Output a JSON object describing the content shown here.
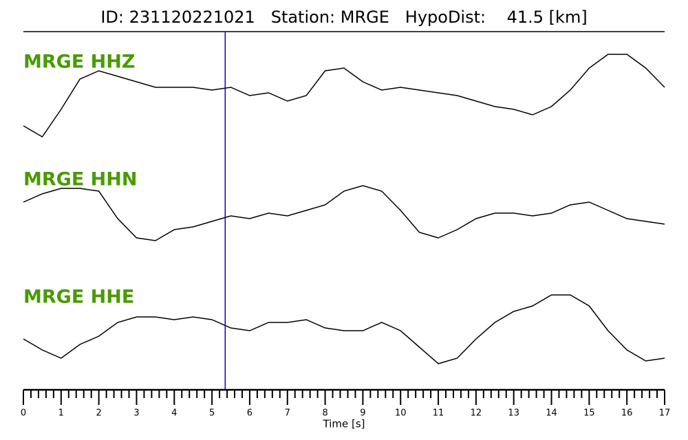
{
  "chart_data": {
    "type": "line",
    "title": "ID: 231120221021   Station: MRGE   HypoDist:    41.5 [km]",
    "xlabel": "Time [s]",
    "x": [
      0,
      0.5,
      1,
      1.5,
      2,
      2.5,
      3,
      3.5,
      4,
      4.5,
      5,
      5.5,
      6,
      6.5,
      7,
      7.5,
      8,
      8.5,
      9,
      9.5,
      10,
      10.5,
      11,
      11.5,
      12,
      12.5,
      13,
      13.5,
      14,
      14.5,
      15,
      15.5,
      16,
      16.5,
      17
    ],
    "series": [
      {
        "name": "MRGE HHZ",
        "color": "#000000",
        "label_color": "#4a9a00",
        "values": [
          -0.5,
          -0.7,
          -0.2,
          0.35,
          0.5,
          0.4,
          0.3,
          0.2,
          0.2,
          0.2,
          0.15,
          0.2,
          0.05,
          0.1,
          -0.05,
          0.05,
          0.5,
          0.55,
          0.3,
          0.15,
          0.2,
          0.15,
          0.1,
          0.05,
          -0.05,
          -0.15,
          -0.2,
          -0.3,
          -0.15,
          0.15,
          0.55,
          0.8,
          0.8,
          0.55,
          0.2
        ]
      },
      {
        "name": "MRGE HHN",
        "color": "#000000",
        "label_color": "#4a9a00",
        "values": [
          0.25,
          0.4,
          0.5,
          0.5,
          0.45,
          -0.05,
          -0.4,
          -0.45,
          -0.25,
          -0.2,
          -0.1,
          0,
          -0.05,
          0.05,
          0,
          0.1,
          0.2,
          0.45,
          0.55,
          0.45,
          0.1,
          -0.3,
          -0.4,
          -0.25,
          -0.05,
          0.05,
          0.05,
          0,
          0.05,
          0.2,
          0.25,
          0.1,
          -0.05,
          -0.1,
          -0.15
        ]
      },
      {
        "name": "MRGE HHE",
        "color": "#000000",
        "label_color": "#4a9a00",
        "values": [
          -0.1,
          -0.3,
          -0.45,
          -0.2,
          -0.05,
          0.2,
          0.3,
          0.3,
          0.25,
          0.3,
          0.25,
          0.1,
          0.05,
          0.2,
          0.2,
          0.25,
          0.1,
          0.05,
          0.05,
          0.2,
          0.05,
          -0.25,
          -0.55,
          -0.45,
          -0.1,
          0.2,
          0.4,
          0.5,
          0.7,
          0.7,
          0.5,
          0.05,
          -0.3,
          -0.5,
          -0.45
        ]
      }
    ],
    "ylim": [
      -1,
      1
    ],
    "xlim": [
      0,
      17
    ],
    "xticks": [
      0,
      1,
      2,
      3,
      4,
      5,
      6,
      7,
      8,
      9,
      10,
      11,
      12,
      13,
      14,
      15,
      16,
      17
    ],
    "xminorticks": [
      0.2,
      0.4,
      0.6,
      0.8,
      1.2,
      1.4,
      1.6,
      1.8,
      2.2,
      2.4,
      2.6,
      2.8,
      3.2,
      3.4,
      3.6,
      3.8,
      4.2,
      4.4,
      4.6,
      4.8,
      5.2,
      5.4,
      5.6,
      5.8,
      6.2,
      6.4,
      6.6,
      6.8,
      7.2,
      7.4,
      7.6,
      7.8,
      8.2,
      8.4,
      8.6,
      8.8,
      9.2,
      9.4,
      9.6,
      9.8,
      10.2,
      10.4,
      10.6,
      10.8,
      11.2,
      11.4,
      11.6,
      11.8,
      12.2,
      12.4,
      12.6,
      12.8,
      13.2,
      13.4,
      13.6,
      13.8,
      14.2,
      14.4,
      14.6,
      14.8,
      15.2,
      15.4,
      15.6,
      15.8,
      16.2,
      16.4,
      16.6,
      16.8
    ],
    "vlines": [
      {
        "x": 5.35,
        "color": "#0000cc"
      }
    ]
  }
}
